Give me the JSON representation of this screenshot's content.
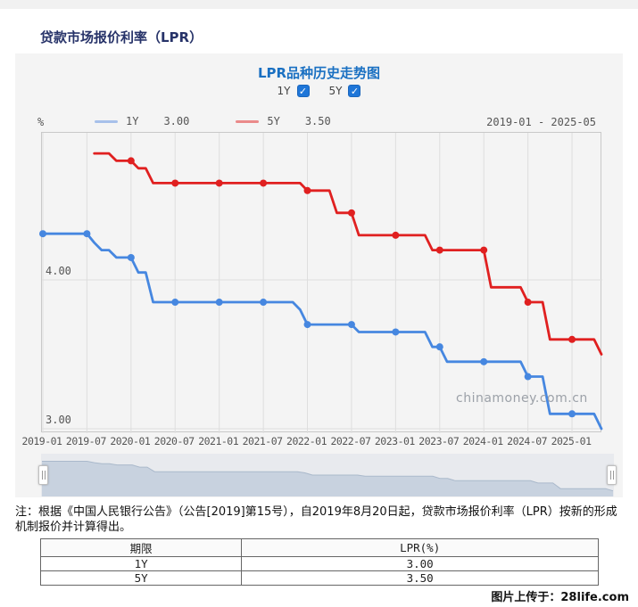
{
  "page_title": "贷款市场报价利率（LPR）",
  "panel": {
    "chart_title": "LPR品种历史走势图",
    "checkboxes": [
      {
        "label": "1Y",
        "checked": true
      },
      {
        "label": "5Y",
        "checked": true
      }
    ],
    "unit_label": "%",
    "legend": [
      {
        "label": "1Y",
        "value": "3.00",
        "swatch_color": "#a7c0ea"
      },
      {
        "label": "5Y",
        "value": "3.50",
        "swatch_color": "#ea8a8a"
      }
    ],
    "date_range": "2019-01 - 2025-05",
    "watermark": "chinamoney.com.cn"
  },
  "chart_data": {
    "type": "line",
    "title": "LPR品种历史走势图",
    "x_start": "2019-01",
    "x_end": "2025-05",
    "total_months": 76,
    "x_tick_labels": [
      "2019-01",
      "2019-07",
      "2020-01",
      "2020-07",
      "2021-01",
      "2021-07",
      "2022-01",
      "2022-07",
      "2023-01",
      "2023-07",
      "2024-01",
      "2024-07",
      "2025-01"
    ],
    "x_tick_interval_months": 6,
    "y_ticks": [
      {
        "label": "4.00",
        "value": 4.0
      },
      {
        "label": "3.00",
        "value": 3.0
      }
    ],
    "y_range": [
      2.97,
      4.99
    ],
    "y_axis_unit": "%",
    "grid": true,
    "series": [
      {
        "name": "1Y",
        "color": "#4687e0",
        "start_month": "2019-01",
        "start_index": 0,
        "values": [
          4.31,
          4.31,
          4.31,
          4.31,
          4.31,
          4.31,
          4.31,
          4.25,
          4.2,
          4.2,
          4.15,
          4.15,
          4.15,
          4.05,
          4.05,
          3.85,
          3.85,
          3.85,
          3.85,
          3.85,
          3.85,
          3.85,
          3.85,
          3.85,
          3.85,
          3.85,
          3.85,
          3.85,
          3.85,
          3.85,
          3.85,
          3.85,
          3.85,
          3.85,
          3.85,
          3.8,
          3.7,
          3.7,
          3.7,
          3.7,
          3.7,
          3.7,
          3.7,
          3.65,
          3.65,
          3.65,
          3.65,
          3.65,
          3.65,
          3.65,
          3.65,
          3.65,
          3.65,
          3.55,
          3.55,
          3.45,
          3.45,
          3.45,
          3.45,
          3.45,
          3.45,
          3.45,
          3.45,
          3.45,
          3.45,
          3.45,
          3.35,
          3.35,
          3.35,
          3.1,
          3.1,
          3.1,
          3.1,
          3.1,
          3.1,
          3.1,
          3.0
        ]
      },
      {
        "name": "5Y",
        "color": "#e02020",
        "start_month": "2019-08",
        "start_index": 7,
        "values": [
          4.85,
          4.85,
          4.85,
          4.8,
          4.8,
          4.8,
          4.75,
          4.75,
          4.65,
          4.65,
          4.65,
          4.65,
          4.65,
          4.65,
          4.65,
          4.65,
          4.65,
          4.65,
          4.65,
          4.65,
          4.65,
          4.65,
          4.65,
          4.65,
          4.65,
          4.65,
          4.65,
          4.65,
          4.65,
          4.6,
          4.6,
          4.6,
          4.6,
          4.45,
          4.45,
          4.45,
          4.3,
          4.3,
          4.3,
          4.3,
          4.3,
          4.3,
          4.3,
          4.3,
          4.3,
          4.3,
          4.2,
          4.2,
          4.2,
          4.2,
          4.2,
          4.2,
          4.2,
          4.2,
          3.95,
          3.95,
          3.95,
          3.95,
          3.95,
          3.85,
          3.85,
          3.85,
          3.6,
          3.6,
          3.6,
          3.6,
          3.6,
          3.6,
          3.6,
          3.5
        ]
      }
    ],
    "marker_interval_months": 6,
    "legend_position": "top-left"
  },
  "navigator": {
    "fill_color": "#c8d2df",
    "edge_color": "#aab9cb"
  },
  "note": "注：根据《中国人民银行公告》（公告[2019]第15号），自2019年8月20日起，贷款市场报价利率（LPR）按新的形成机制报价并计算得出。",
  "table": {
    "headers": [
      "期限",
      "LPR(%)"
    ],
    "rows": [
      [
        "1Y",
        "3.00"
      ],
      [
        "5Y",
        "3.50"
      ]
    ]
  },
  "footer": "图片上传于：28life.com"
}
